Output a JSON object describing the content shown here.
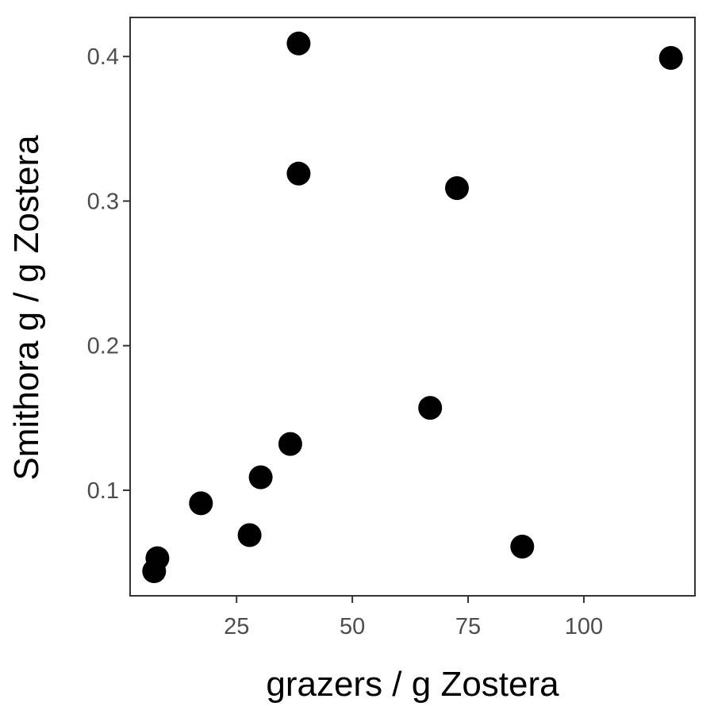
{
  "chart_data": {
    "type": "scatter",
    "xlabel": "grazers / g Zostera",
    "ylabel": "Smithora g / g Zostera",
    "xlim": [
      2,
      124
    ],
    "ylim": [
      0.027,
      0.427
    ],
    "x_ticks": [
      {
        "value": 25,
        "label": "25"
      },
      {
        "value": 50,
        "label": "50"
      },
      {
        "value": 75,
        "label": "75"
      },
      {
        "value": 100,
        "label": "100"
      }
    ],
    "y_ticks": [
      {
        "value": 0.1,
        "label": "0.1"
      },
      {
        "value": 0.2,
        "label": "0.2"
      },
      {
        "value": 0.3,
        "label": "0.3"
      },
      {
        "value": 0.4,
        "label": "0.4"
      }
    ],
    "grid": false,
    "point_color": "#000000",
    "points": [
      {
        "x": 7.2,
        "y": 0.044
      },
      {
        "x": 7.9,
        "y": 0.053
      },
      {
        "x": 17.3,
        "y": 0.091
      },
      {
        "x": 27.8,
        "y": 0.069
      },
      {
        "x": 30.2,
        "y": 0.109
      },
      {
        "x": 36.6,
        "y": 0.132
      },
      {
        "x": 38.4,
        "y": 0.409
      },
      {
        "x": 38.4,
        "y": 0.319
      },
      {
        "x": 66.8,
        "y": 0.157
      },
      {
        "x": 72.6,
        "y": 0.309
      },
      {
        "x": 86.7,
        "y": 0.061
      },
      {
        "x": 118.8,
        "y": 0.399
      }
    ]
  }
}
